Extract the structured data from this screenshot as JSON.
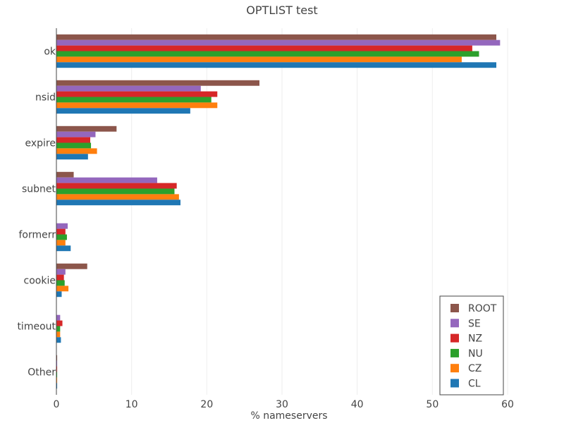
{
  "chart_data": {
    "type": "bar",
    "orientation": "horizontal",
    "title": "OPTLIST test",
    "xlabel": "% nameservers",
    "ylabel": "",
    "xlim": [
      0,
      60
    ],
    "xticks": [
      0,
      10,
      20,
      30,
      40,
      50,
      60
    ],
    "grid": "vertical",
    "legend_position": "bottom-right",
    "categories": [
      "ok",
      "nsid",
      "expire",
      "subnet",
      "formerr",
      "cookie",
      "timeout",
      "Other"
    ],
    "series": [
      {
        "name": "ROOT",
        "color": "#8c564b",
        "values": [
          58.5,
          27.0,
          8.0,
          2.3,
          0.0,
          4.1,
          0.0,
          0.1
        ]
      },
      {
        "name": "SE",
        "color": "#9467bd",
        "values": [
          59.0,
          19.2,
          5.2,
          13.4,
          1.5,
          1.2,
          0.5,
          0.1
        ]
      },
      {
        "name": "NZ",
        "color": "#d62728",
        "values": [
          55.3,
          21.4,
          4.5,
          16.0,
          1.2,
          1.0,
          0.8,
          0.1
        ]
      },
      {
        "name": "NU",
        "color": "#2ca02c",
        "values": [
          56.2,
          20.6,
          4.6,
          15.7,
          1.4,
          1.1,
          0.5,
          0.1
        ]
      },
      {
        "name": "CZ",
        "color": "#ff7f0e",
        "values": [
          53.9,
          21.4,
          5.4,
          16.3,
          1.2,
          1.6,
          0.5,
          0.1
        ]
      },
      {
        "name": "CL",
        "color": "#1f77b4",
        "values": [
          58.5,
          17.8,
          4.2,
          16.5,
          1.9,
          0.7,
          0.6,
          0.1
        ]
      }
    ]
  }
}
